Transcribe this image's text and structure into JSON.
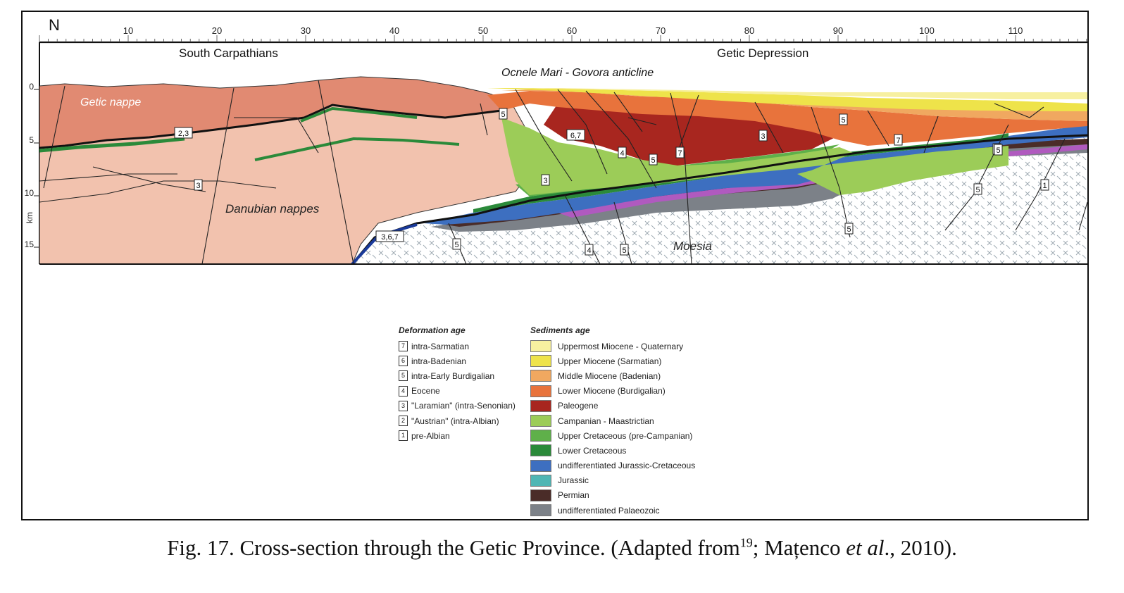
{
  "axis": {
    "north_label": "N",
    "ticks": [
      "10",
      "20",
      "30",
      "40",
      "50",
      "60",
      "70",
      "80",
      "90",
      "100",
      "110"
    ],
    "depth_ticks": [
      "0",
      "5",
      "10",
      "15"
    ],
    "depth_unit": "km"
  },
  "regions": {
    "south_carpathians": "South Carpathians",
    "getic_depression": "Getic Depression",
    "anticline": "Ocnele Mari - Govora anticline",
    "getic_nappe": "Getic nappe",
    "danubian_nappes": "Danubian nappes",
    "moesia": "Moesia"
  },
  "fault_markers": [
    "2,3",
    "3",
    "3,6,7",
    "5",
    "5",
    "6,7",
    "4",
    "5",
    "7",
    "3",
    "5",
    "7",
    "5",
    "5",
    "1",
    "5",
    "3",
    "5",
    "4",
    "5"
  ],
  "colors": {
    "uppermost_miocene": "#f7f0a0",
    "upper_miocene": "#eee34a",
    "middle_miocene": "#f0a860",
    "lower_miocene": "#e8733c",
    "paleogene": "#a8261f",
    "campanian": "#9ccc58",
    "upper_cretaceous": "#5fb04a",
    "lower_cretaceous": "#2b8a3a",
    "jurassic_cretaceous": "#3d6fc0",
    "jurassic": "#4fb6b4",
    "permian": "#4a2c28",
    "palaeozoic": "#7c8188",
    "getic_nappe": "#e18a72",
    "danubian_nappes": "#f2c2ae",
    "moesia_pattern": "#9ba7b0"
  },
  "legend_deformation": {
    "title": "Deformation age",
    "items": [
      {
        "num": "7",
        "label": "intra-Sarmatian"
      },
      {
        "num": "6",
        "label": "intra-Badenian"
      },
      {
        "num": "5",
        "label": "intra-Early Burdigalian"
      },
      {
        "num": "4",
        "label": "Eocene"
      },
      {
        "num": "3",
        "label": "\"Laramian\" (intra-Senonian)"
      },
      {
        "num": "2",
        "label": "\"Austrian\" (intra-Albian)"
      },
      {
        "num": "1",
        "label": "pre-Albian"
      }
    ]
  },
  "legend_sediments": {
    "title": "Sediments age",
    "items": [
      {
        "label": "Uppermost Miocene - Quaternary",
        "color": "#f7f0a0"
      },
      {
        "label": "Upper Miocene (Sarmatian)",
        "color": "#eee34a"
      },
      {
        "label": "Middle Miocene (Badenian)",
        "color": "#f0a860"
      },
      {
        "label": "Lower Miocene (Burdigalian)",
        "color": "#e8733c"
      },
      {
        "label": "Paleogene",
        "color": "#a8261f"
      },
      {
        "label": "Campanian - Maastrictian",
        "color": "#9ccc58"
      },
      {
        "label": "Upper Cretaceous (pre-Campanian)",
        "color": "#5fb04a"
      },
      {
        "label": "Lower Cretaceous",
        "color": "#2b8a3a"
      },
      {
        "label": "undifferentiated Jurassic-Cretaceous",
        "color": "#3d6fc0"
      },
      {
        "label": "Jurassic",
        "color": "#4fb6b4"
      },
      {
        "label": "Permian",
        "color": "#4a2c28"
      },
      {
        "label": "undifferentiated Palaeozoic",
        "color": "#7c8188"
      }
    ]
  },
  "caption": {
    "prefix": "Fig. 17. Cross-section through the Getic Province. (Adapted from",
    "ref": "19",
    "mid": "; Mațenco ",
    "etal": "et al",
    "suffix": "., 2010)."
  }
}
